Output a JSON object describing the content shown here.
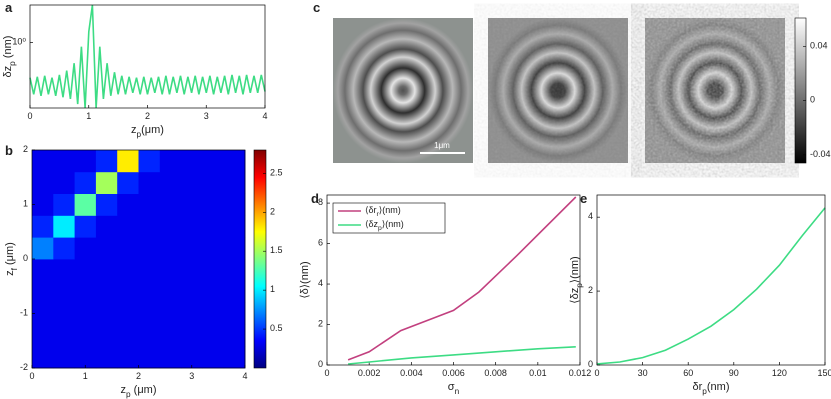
{
  "chart_data": [
    {
      "type": "line",
      "panel_label": "a",
      "x_label": "z_p(μm)",
      "y_label": "δz_p (nm)",
      "log_y": true,
      "xlim": [
        0,
        4
      ],
      "xticks": [
        0,
        1,
        2,
        3,
        4
      ],
      "ylim": [
        0.2,
        2.5
      ],
      "yticks": [
        {
          "value": 1,
          "label": "10⁰"
        }
      ],
      "series": [
        {
          "color": "#3ddc84",
          "x": [
            0,
            0.0625,
            0.125,
            0.1875,
            0.25,
            0.3125,
            0.375,
            0.4375,
            0.5,
            0.5625,
            0.625,
            0.6875,
            0.75,
            0.8125,
            0.875,
            0.9375,
            1,
            1.0625,
            1.125,
            1.1875,
            1.25,
            1.3125,
            1.375,
            1.4375,
            1.5,
            1.5625,
            1.625,
            1.6875,
            1.75,
            1.8125,
            1.875,
            1.9375,
            2,
            2.0625,
            2.125,
            2.1875,
            2.25,
            2.3125,
            2.375,
            2.4375,
            2.5,
            2.5625,
            2.625,
            2.6875,
            2.75,
            2.8125,
            2.875,
            2.9375,
            3,
            3.0625,
            3.125,
            3.1875,
            3.25,
            3.3125,
            3.375,
            3.4375,
            3.5,
            3.5625,
            3.625,
            3.6875,
            3.75,
            3.8125,
            3.875,
            3.9375,
            4
          ],
          "values": [
            0.42,
            0.28,
            0.43,
            0.27,
            0.44,
            0.28,
            0.42,
            0.27,
            0.45,
            0.26,
            0.5,
            0.25,
            0.6,
            0.22,
            0.9,
            0.2,
            1.3,
            2.5,
            0.2,
            0.9,
            0.25,
            0.6,
            0.27,
            0.48,
            0.28,
            0.44,
            0.28,
            0.43,
            0.29,
            0.42,
            0.28,
            0.43,
            0.28,
            0.42,
            0.29,
            0.43,
            0.28,
            0.44,
            0.28,
            0.43,
            0.29,
            0.44,
            0.28,
            0.43,
            0.29,
            0.44,
            0.28,
            0.43,
            0.29,
            0.44,
            0.28,
            0.43,
            0.29,
            0.44,
            0.28,
            0.45,
            0.29,
            0.44,
            0.28,
            0.45,
            0.29,
            0.44,
            0.29,
            0.45,
            0.3
          ]
        }
      ]
    },
    {
      "type": "heatmap",
      "panel_label": "b",
      "x_label": "z_p (μm)",
      "y_label": "z_f (μm)",
      "xlim": [
        0,
        4
      ],
      "xticks": [
        0,
        1,
        2,
        3,
        4
      ],
      "ylim": [
        -2,
        2
      ],
      "yticks": [
        -2,
        -1,
        0,
        1,
        2
      ],
      "clim": [
        0,
        2.8
      ],
      "cticks": [
        0.5,
        1,
        1.5,
        2,
        2.5
      ],
      "z": [
        [
          0.3,
          0.3,
          0.3,
          0.3,
          0.3,
          0.3,
          0.3,
          0.3,
          0.3,
          0.3
        ],
        [
          0.3,
          0.3,
          0.3,
          0.3,
          0.3,
          0.3,
          0.3,
          0.3,
          0.3,
          0.3
        ],
        [
          0.3,
          0.3,
          0.3,
          0.3,
          0.3,
          0.3,
          0.3,
          0.3,
          0.3,
          0.3
        ],
        [
          0.3,
          0.3,
          0.3,
          0.3,
          0.3,
          0.3,
          0.3,
          0.3,
          0.3,
          0.3
        ],
        [
          0.3,
          0.3,
          0.3,
          0.3,
          0.3,
          0.3,
          0.3,
          0.3,
          0.3,
          0.3
        ],
        [
          0.7,
          0.45,
          0.3,
          0.3,
          0.3,
          0.3,
          0.3,
          0.3,
          0.3,
          0.3
        ],
        [
          0.45,
          1.0,
          0.45,
          0.3,
          0.3,
          0.3,
          0.3,
          0.3,
          0.3,
          0.3
        ],
        [
          0.3,
          0.45,
          1.3,
          0.45,
          0.3,
          0.3,
          0.3,
          0.3,
          0.3,
          0.3
        ],
        [
          0.3,
          0.3,
          0.45,
          1.5,
          0.45,
          0.3,
          0.3,
          0.3,
          0.3,
          0.3
        ],
        [
          0.3,
          0.3,
          0.3,
          0.45,
          1.8,
          0.45,
          0.3,
          0.3,
          0.3,
          0.3
        ]
      ]
    },
    {
      "type": "image",
      "panel_label": "c",
      "scale_bar": "1μm",
      "clim": [
        -0.046,
        0.061
      ],
      "cticks": [
        0.04,
        0,
        -0.04
      ]
    },
    {
      "type": "line",
      "panel_label": "d",
      "x_label": "σ_n",
      "y_label": "⟨δ⟩(nm)",
      "xlim": [
        0,
        0.012
      ],
      "xticks": [
        0,
        0.002,
        0.004,
        0.006,
        0.008,
        0.01,
        0.012
      ],
      "ylim": [
        0,
        8.4
      ],
      "yticks": [
        0,
        2,
        4,
        6,
        8
      ],
      "series": [
        {
          "name": "⟨δr_r⟩(nm)",
          "color": "#c2407f",
          "x": [
            0.001,
            0.002,
            0.0035,
            0.005,
            0.006,
            0.0072,
            0.009,
            0.0118
          ],
          "values": [
            0.25,
            0.65,
            1.7,
            2.3,
            2.7,
            3.6,
            5.4,
            8.3
          ]
        },
        {
          "name": "⟨δz_p⟩(nm)",
          "color": "#3ddc84",
          "x": [
            0.001,
            0.002,
            0.004,
            0.006,
            0.008,
            0.01,
            0.0118
          ],
          "values": [
            0.05,
            0.15,
            0.35,
            0.5,
            0.65,
            0.8,
            0.9
          ]
        }
      ]
    },
    {
      "type": "line",
      "panel_label": "e",
      "x_label": "δr_p(nm)",
      "y_label": "⟨δz_p⟩(nm)",
      "xlim": [
        0,
        150
      ],
      "xticks": [
        0,
        30,
        60,
        90,
        120,
        150
      ],
      "ylim": [
        0,
        4.6
      ],
      "yticks": [
        0,
        2,
        4
      ],
      "series": [
        {
          "color": "#3ddc84",
          "x": [
            0,
            15,
            30,
            45,
            60,
            75,
            90,
            105,
            120,
            135,
            150
          ],
          "values": [
            0.03,
            0.08,
            0.2,
            0.4,
            0.7,
            1.05,
            1.5,
            2.05,
            2.7,
            3.5,
            4.25
          ]
        }
      ]
    }
  ]
}
